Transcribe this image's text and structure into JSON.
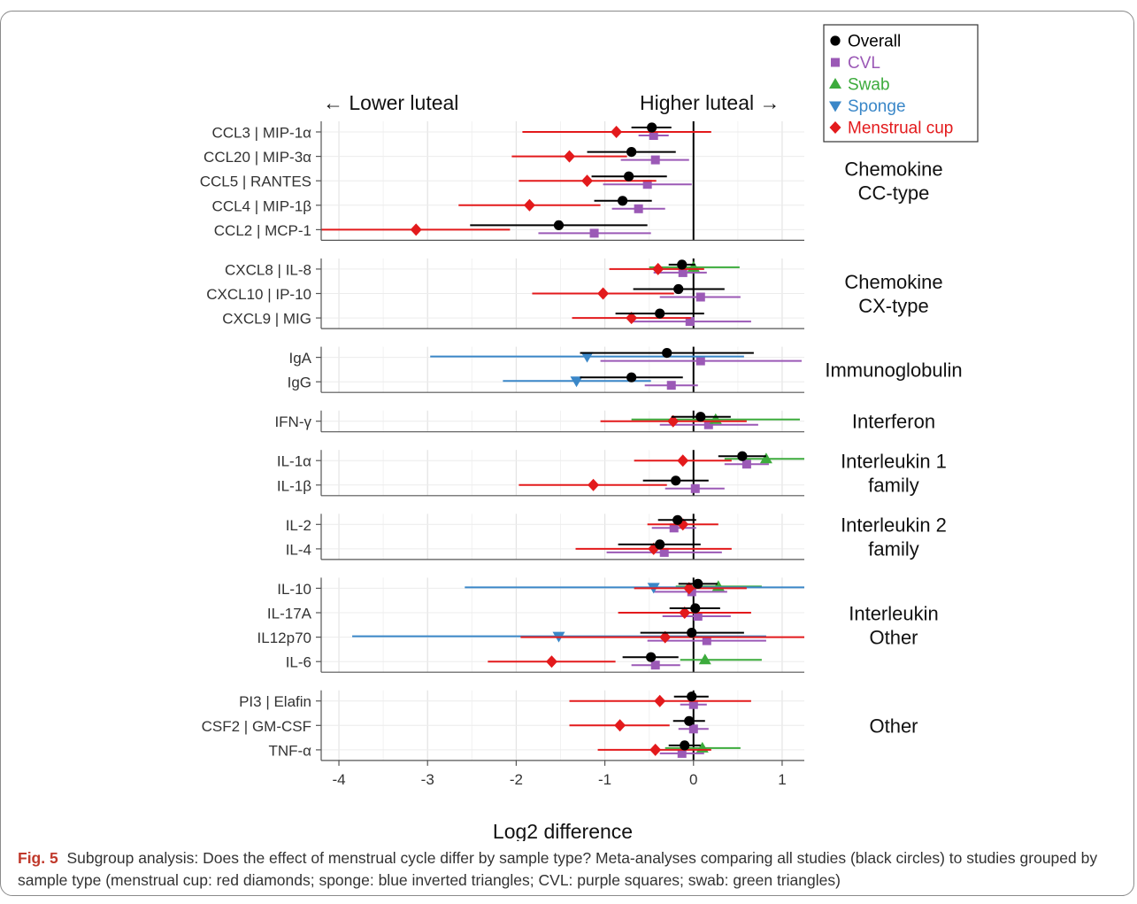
{
  "caption": {
    "label": "Fig. 5",
    "text": "Subgroup analysis: Does the effect of menstrual cycle differ by sample type? Meta-analyses comparing all studies (black circles) to studies grouped by sample type (menstrual cup: red diamonds; sponge: blue inverted triangles; CVL: purple squares; swab: green triangles)"
  },
  "chart_data": {
    "type": "forest",
    "xlabel": "Log2 difference",
    "xlim": [
      -4.2,
      1.25
    ],
    "xticks": [
      -4,
      -3,
      -2,
      -1,
      0,
      1
    ],
    "top_labels": {
      "left": "← Lower luteal",
      "right": "Higher luteal →"
    },
    "grid": true,
    "legend_position": "top-right",
    "series": [
      {
        "key": "overall",
        "name": "Overall",
        "color": "#000000",
        "marker": "circle"
      },
      {
        "key": "cvl",
        "name": "CVL",
        "color": "#9b59b6",
        "marker": "square"
      },
      {
        "key": "swab",
        "name": "Swab",
        "color": "#3cab3c",
        "marker": "triangle-up"
      },
      {
        "key": "sponge",
        "name": "Sponge",
        "color": "#3a87c8",
        "marker": "triangle-down"
      },
      {
        "key": "cup",
        "name": "Menstrual cup",
        "color": "#e31a1c",
        "marker": "diamond"
      }
    ],
    "panels": [
      {
        "group": "Chemokine\nCC-type",
        "rows": [
          {
            "label": "CCL3 | MIP-1α",
            "est": {
              "overall": [
                -0.47,
                -0.7,
                -0.25
              ],
              "cvl": [
                -0.45,
                -0.62,
                -0.28
              ],
              "cup": [
                -0.87,
                -1.93,
                0.2
              ]
            }
          },
          {
            "label": "CCL20 | MIP-3α",
            "est": {
              "overall": [
                -0.7,
                -1.2,
                -0.2
              ],
              "cvl": [
                -0.43,
                -0.82,
                -0.05
              ],
              "cup": [
                -1.4,
                -2.05,
                -0.75
              ]
            }
          },
          {
            "label": "CCL5 | RANTES",
            "est": {
              "overall": [
                -0.73,
                -1.15,
                -0.3
              ],
              "cvl": [
                -0.52,
                -1.02,
                -0.02
              ],
              "cup": [
                -1.2,
                -1.97,
                -0.42
              ]
            }
          },
          {
            "label": "CCL4 | MIP-1β",
            "est": {
              "overall": [
                -0.8,
                -1.12,
                -0.47
              ],
              "cvl": [
                -0.62,
                -0.92,
                -0.32
              ],
              "cup": [
                -1.85,
                -2.65,
                -1.05
              ]
            }
          },
          {
            "label": "CCL2 | MCP-1",
            "est": {
              "overall": [
                -1.52,
                -2.52,
                -0.52
              ],
              "cvl": [
                -1.12,
                -1.75,
                -0.48
              ],
              "cup": [
                -3.13,
                -4.2,
                -2.07
              ]
            }
          }
        ]
      },
      {
        "group": "Chemokine\nCX-type",
        "rows": [
          {
            "label": "CXCL8 | IL-8",
            "est": {
              "overall": [
                -0.13,
                -0.28,
                0.02
              ],
              "cvl": [
                -0.12,
                -0.45,
                0.15
              ],
              "swab": [
                0.0,
                -0.5,
                0.52
              ],
              "cup": [
                -0.4,
                -0.95,
                0.12
              ]
            }
          },
          {
            "label": "CXCL10 | IP-10",
            "est": {
              "overall": [
                -0.17,
                -0.68,
                0.35
              ],
              "cvl": [
                0.08,
                -0.38,
                0.53
              ],
              "cup": [
                -1.02,
                -1.82,
                -0.22
              ]
            }
          },
          {
            "label": "CXCL9 | MIG",
            "est": {
              "overall": [
                -0.38,
                -0.88,
                0.12
              ],
              "cvl": [
                -0.04,
                -0.72,
                0.65
              ],
              "cup": [
                -0.7,
                -1.37,
                -0.03
              ]
            }
          }
        ]
      },
      {
        "group": "Immunoglobulin",
        "rows": [
          {
            "label": "IgA",
            "est": {
              "overall": [
                -0.3,
                -1.28,
                0.68
              ],
              "cvl": [
                0.08,
                -1.05,
                1.22
              ],
              "sponge": [
                -1.2,
                -2.97,
                0.57
              ]
            }
          },
          {
            "label": "IgG",
            "est": {
              "overall": [
                -0.7,
                -1.28,
                -0.12
              ],
              "cvl": [
                -0.25,
                -0.55,
                0.05
              ],
              "sponge": [
                -1.32,
                -2.15,
                -0.48
              ]
            }
          }
        ]
      },
      {
        "group": "Interferon",
        "rows": [
          {
            "label": "IFN-γ",
            "est": {
              "overall": [
                0.08,
                -0.25,
                0.42
              ],
              "cvl": [
                0.17,
                -0.38,
                0.73
              ],
              "swab": [
                0.25,
                -0.7,
                1.2
              ],
              "cup": [
                -0.23,
                -1.05,
                0.6
              ]
            }
          }
        ]
      },
      {
        "group": "Interleukin 1\nfamily",
        "rows": [
          {
            "label": "IL-1α",
            "est": {
              "overall": [
                0.55,
                0.28,
                0.82
              ],
              "cvl": [
                0.6,
                0.35,
                0.85
              ],
              "swab": [
                0.82,
                0.35,
                1.25
              ],
              "cup": [
                -0.12,
                -0.67,
                0.43
              ]
            }
          },
          {
            "label": "IL-1β",
            "est": {
              "overall": [
                -0.2,
                -0.57,
                0.17
              ],
              "cvl": [
                0.02,
                -0.32,
                0.35
              ],
              "cup": [
                -1.13,
                -1.97,
                -0.3
              ]
            }
          }
        ]
      },
      {
        "group": "Interleukin 2\nfamily",
        "rows": [
          {
            "label": "IL-2",
            "est": {
              "overall": [
                -0.18,
                -0.4,
                0.03
              ],
              "cvl": [
                -0.22,
                -0.47,
                0.03
              ],
              "cup": [
                -0.12,
                -0.52,
                0.28
              ]
            }
          },
          {
            "label": "IL-4",
            "est": {
              "overall": [
                -0.38,
                -0.85,
                0.08
              ],
              "cvl": [
                -0.33,
                -0.98,
                0.32
              ],
              "cup": [
                -0.45,
                -1.33,
                0.43
              ]
            }
          }
        ]
      },
      {
        "group": "Interleukin\nOther",
        "rows": [
          {
            "label": "IL-10",
            "est": {
              "overall": [
                0.05,
                -0.17,
                0.27
              ],
              "cvl": [
                -0.02,
                -0.45,
                0.38
              ],
              "swab": [
                0.28,
                -0.2,
                0.77
              ],
              "sponge": [
                -0.45,
                -2.58,
                1.25
              ],
              "cup": [
                -0.05,
                -0.67,
                0.6
              ]
            }
          },
          {
            "label": "IL-17A",
            "est": {
              "overall": [
                0.02,
                -0.27,
                0.3
              ],
              "cvl": [
                0.05,
                -0.35,
                0.42
              ],
              "cup": [
                -0.1,
                -0.85,
                0.65
              ]
            }
          },
          {
            "label": "IL12p70",
            "est": {
              "overall": [
                -0.02,
                -0.6,
                0.57
              ],
              "cvl": [
                0.15,
                -0.52,
                0.82
              ],
              "sponge": [
                -1.52,
                -3.85,
                0.82
              ],
              "cup": [
                -0.32,
                -1.95,
                1.25
              ]
            }
          },
          {
            "label": "IL-6",
            "est": {
              "overall": [
                -0.48,
                -0.8,
                -0.17
              ],
              "cvl": [
                -0.43,
                -0.7,
                -0.15
              ],
              "swab": [
                0.13,
                -0.15,
                0.77
              ],
              "cup": [
                -1.6,
                -2.32,
                -0.88
              ]
            }
          }
        ]
      },
      {
        "group": "Other",
        "rows": [
          {
            "label": "PI3 | Elafin",
            "est": {
              "overall": [
                -0.02,
                -0.22,
                0.17
              ],
              "cvl": [
                0.0,
                -0.15,
                0.15
              ],
              "cup": [
                -0.38,
                -1.4,
                0.65
              ]
            }
          },
          {
            "label": "CSF2 | GM-CSF",
            "est": {
              "overall": [
                -0.05,
                -0.23,
                0.13
              ],
              "cvl": [
                0.0,
                -0.17,
                0.17
              ],
              "cup": [
                -0.83,
                -1.4,
                -0.27
              ]
            }
          },
          {
            "label": "TNF-α",
            "est": {
              "overall": [
                -0.1,
                -0.28,
                0.08
              ],
              "cvl": [
                -0.13,
                -0.38,
                0.12
              ],
              "swab": [
                0.1,
                -0.32,
                0.53
              ],
              "cup": [
                -0.43,
                -1.08,
                0.2
              ]
            }
          }
        ]
      }
    ]
  }
}
